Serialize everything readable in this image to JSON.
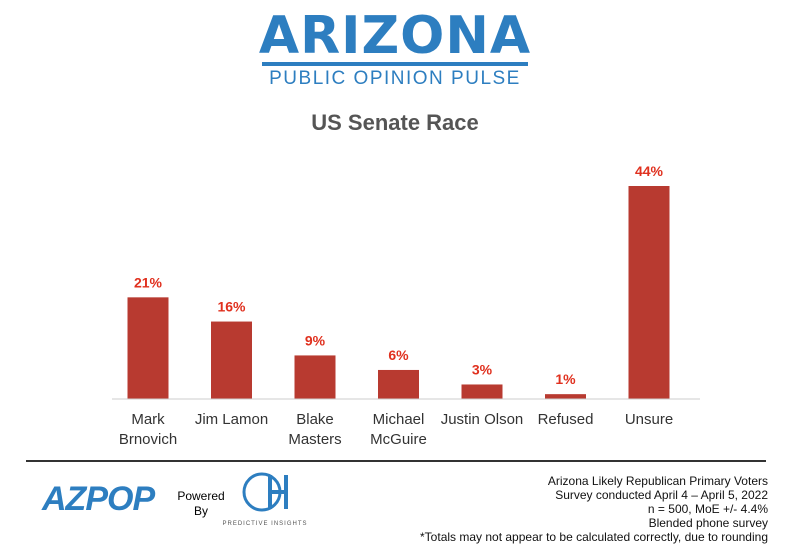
{
  "header": {
    "brand_title": "ARIZONA",
    "brand_subtitle": "PUBLIC OPINION PULSE"
  },
  "chart_data": {
    "type": "bar",
    "title": "US Senate Race",
    "categories": [
      [
        "Mark",
        "Brnovich"
      ],
      [
        "Jim Lamon"
      ],
      [
        "Blake",
        "Masters"
      ],
      [
        "Michael",
        "McGuire"
      ],
      [
        "Justin Olson"
      ],
      [
        "Refused"
      ],
      [
        "Unsure"
      ]
    ],
    "values": [
      21,
      16,
      9,
      6,
      3,
      1,
      44
    ],
    "data_labels": [
      "21%",
      "16%",
      "9%",
      "6%",
      "3%",
      "1%",
      "44%"
    ],
    "unit": "%",
    "ylim": [
      0,
      50
    ],
    "grid": false,
    "bar_color": "#b83a30",
    "label_color": "#e0301e"
  },
  "footer": {
    "logo_az": "AZPOP",
    "powered_line1": "Powered",
    "powered_line2": "By",
    "logo_oh": "OH",
    "logo_oh_sub": "PREDICTIVE INSIGHTS",
    "notes": [
      "Arizona Likely Republican Primary Voters",
      "Survey conducted April 4 – April 5, 2022",
      "n = 500, MoE +/- 4.4%",
      "Blended phone survey",
      "*Totals may not appear to be calculated correctly, due to rounding"
    ]
  },
  "colors": {
    "brand_blue": "#2d7ec0",
    "axis": "#cccccc"
  }
}
